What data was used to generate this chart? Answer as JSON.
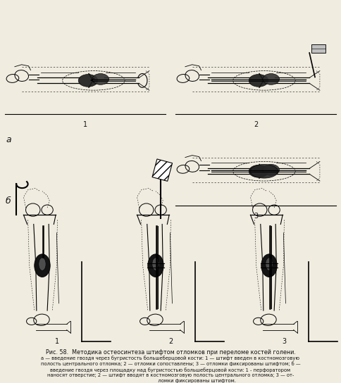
{
  "figure_title": "Рис. 58.  Методика остеосинтеза штифтом отломков при переломе костей голени.",
  "caption_line1": "а — введение гвоздя через бугристость большеберцовой кости: 1 — штифт введен в костномозговую",
  "caption_line2": "полость центрального отломка; 2 — отломки сопоставлены; 3 — отломки фиксированы штифтом; б —",
  "caption_line3": "введение гвоздя через площадку над бугристостью большеберцовой кости: 1 - перфоратором",
  "caption_line4": "наносят отверстие; 2 — штифт вводят в костномозговую полость центрального отломка; 3 — от-",
  "caption_line5": "                                   ломки фиксированы штифтом.",
  "label_a": "а",
  "label_b": "б",
  "bg_color": "#f0ece0",
  "text_color": "#111111",
  "fig_width": 4.84,
  "fig_height": 5.44,
  "dpi": 100
}
